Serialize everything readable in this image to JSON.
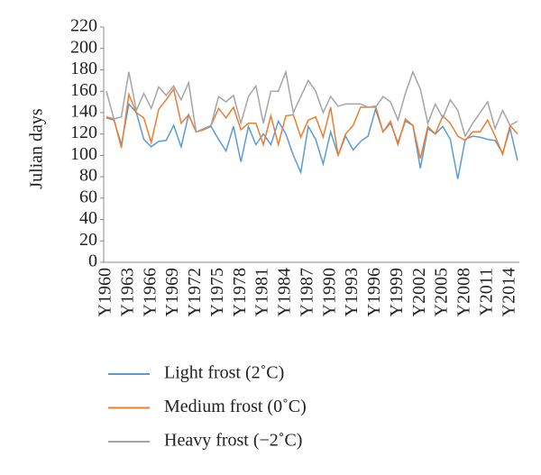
{
  "chart_data": {
    "type": "line",
    "y_label": "Julian days",
    "categories": [
      "Y1960",
      null,
      null,
      "Y1963",
      null,
      null,
      "Y1966",
      null,
      null,
      "Y1969",
      null,
      null,
      "Y1972",
      null,
      null,
      "Y1975",
      null,
      null,
      "Y1978",
      null,
      null,
      "Y1981",
      null,
      null,
      "Y1984",
      null,
      null,
      "Y1987",
      null,
      null,
      "Y1990",
      null,
      null,
      "Y1993",
      null,
      null,
      "Y1996",
      null,
      null,
      "Y1999",
      null,
      null,
      "Y2002",
      null,
      null,
      "Y2005",
      null,
      null,
      "Y2008",
      null,
      null,
      "Y2011",
      null,
      null,
      "Y2014",
      null
    ],
    "series": [
      {
        "name": "Light frost (2˚C)",
        "color": "#5b9bd5",
        "values": [
          135,
          133,
          110,
          148,
          140,
          115,
          108,
          113,
          114,
          128,
          108,
          138,
          122,
          124,
          127,
          115,
          104,
          127,
          94,
          127,
          110,
          120,
          110,
          132,
          120,
          100,
          84,
          127,
          115,
          92,
          122,
          100,
          118,
          105,
          113,
          118,
          143,
          122,
          130,
          112,
          132,
          128,
          88,
          125,
          120,
          127,
          115,
          78,
          115,
          118,
          117,
          115,
          114,
          102,
          125,
          95
        ]
      },
      {
        "name": "Medium frost (0˚C)",
        "color": "#ed7d31",
        "values": [
          136,
          134,
          107,
          157,
          140,
          135,
          112,
          143,
          152,
          162,
          130,
          138,
          122,
          124,
          128,
          144,
          135,
          145,
          124,
          130,
          130,
          110,
          137,
          110,
          137,
          138,
          117,
          133,
          136,
          117,
          145,
          100,
          120,
          128,
          145,
          145,
          146,
          122,
          132,
          110,
          134,
          128,
          97,
          127,
          120,
          137,
          130,
          118,
          114,
          122,
          122,
          133,
          118,
          101,
          128,
          120
        ]
      },
      {
        "name": "Heavy frost (−2˚C)",
        "color": "#a5a5a5",
        "values": [
          160,
          134,
          136,
          178,
          142,
          158,
          144,
          164,
          156,
          165,
          152,
          168,
          122,
          125,
          128,
          155,
          150,
          156,
          130,
          155,
          165,
          130,
          160,
          160,
          178,
          140,
          155,
          170,
          160,
          140,
          155,
          146,
          148,
          148,
          148,
          145,
          145,
          155,
          150,
          133,
          158,
          178,
          162,
          130,
          148,
          135,
          152,
          142,
          118,
          130,
          140,
          150,
          125,
          142,
          128,
          132
        ]
      }
    ],
    "ylim": [
      0,
      220
    ],
    "yticks": [
      0,
      20,
      40,
      60,
      80,
      100,
      120,
      140,
      160,
      180,
      200,
      220
    ]
  }
}
